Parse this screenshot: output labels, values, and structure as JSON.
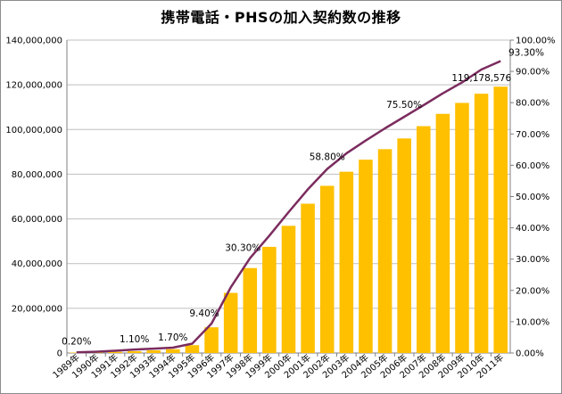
{
  "chart_data": {
    "type": "bar",
    "title": "携帯電話・PHSの加入契約数の推移",
    "categories": [
      "1989年",
      "1990年",
      "1991年",
      "1992年",
      "1993年",
      "1994年",
      "1995年",
      "1996年",
      "1997年",
      "1998年",
      "1999年",
      "2000年",
      "2001年",
      "2002年",
      "2003年",
      "2004年",
      "2005年",
      "2006年",
      "2007年",
      "2008年",
      "2009年",
      "2010年",
      "2011年"
    ],
    "series": [
      {
        "type": "bar",
        "axis": "left",
        "color": "#FFC000",
        "values": [
          200000,
          300000,
          500000,
          800000,
          1200000,
          1700000,
          3500000,
          11500000,
          26900000,
          38000000,
          47500000,
          56900000,
          66800000,
          74800000,
          81100000,
          86500000,
          91200000,
          96000000,
          101500000,
          107000000,
          111900000,
          116000000,
          119178576
        ]
      },
      {
        "type": "line",
        "axis": "right",
        "color": "#7B2C5E",
        "values": [
          0.2,
          0.4,
          0.7,
          1.1,
          1.4,
          1.7,
          3.0,
          9.4,
          21.0,
          30.3,
          37.5,
          45.0,
          52.3,
          58.8,
          63.8,
          67.9,
          71.8,
          75.5,
          79.2,
          83.0,
          86.5,
          90.6,
          93.3
        ]
      }
    ],
    "y_left": {
      "min": 0,
      "max": 140000000,
      "step": 20000000,
      "ticks": [
        "0",
        "20,000,000",
        "40,000,000",
        "60,000,000",
        "80,000,000",
        "100,000,000",
        "120,000,000",
        "140,000,000"
      ]
    },
    "y_right": {
      "min": 0,
      "max": 100,
      "step": 10,
      "ticks": [
        "0.00%",
        "10.00%",
        "20.00%",
        "30.00%",
        "40.00%",
        "50.00%",
        "60.00%",
        "70.00%",
        "80.00%",
        "90.00%",
        "100.00%"
      ]
    },
    "annotations": [
      {
        "index": 0,
        "series": 1,
        "text": "0.20%"
      },
      {
        "index": 3,
        "series": 1,
        "text": "1.10%"
      },
      {
        "index": 5,
        "series": 1,
        "text": "1.70%"
      },
      {
        "index": 7,
        "series": 1,
        "text": "9.40%"
      },
      {
        "index": 9,
        "series": 1,
        "text": "30.30%"
      },
      {
        "index": 13,
        "series": 1,
        "text": "58.80%"
      },
      {
        "index": 17,
        "series": 1,
        "text": "75.50%"
      },
      {
        "index": 22,
        "series": 1,
        "text": "93.30%"
      },
      {
        "index": 22,
        "series": 0,
        "text": "119,178,576"
      }
    ],
    "grid": true,
    "legend": "none"
  }
}
